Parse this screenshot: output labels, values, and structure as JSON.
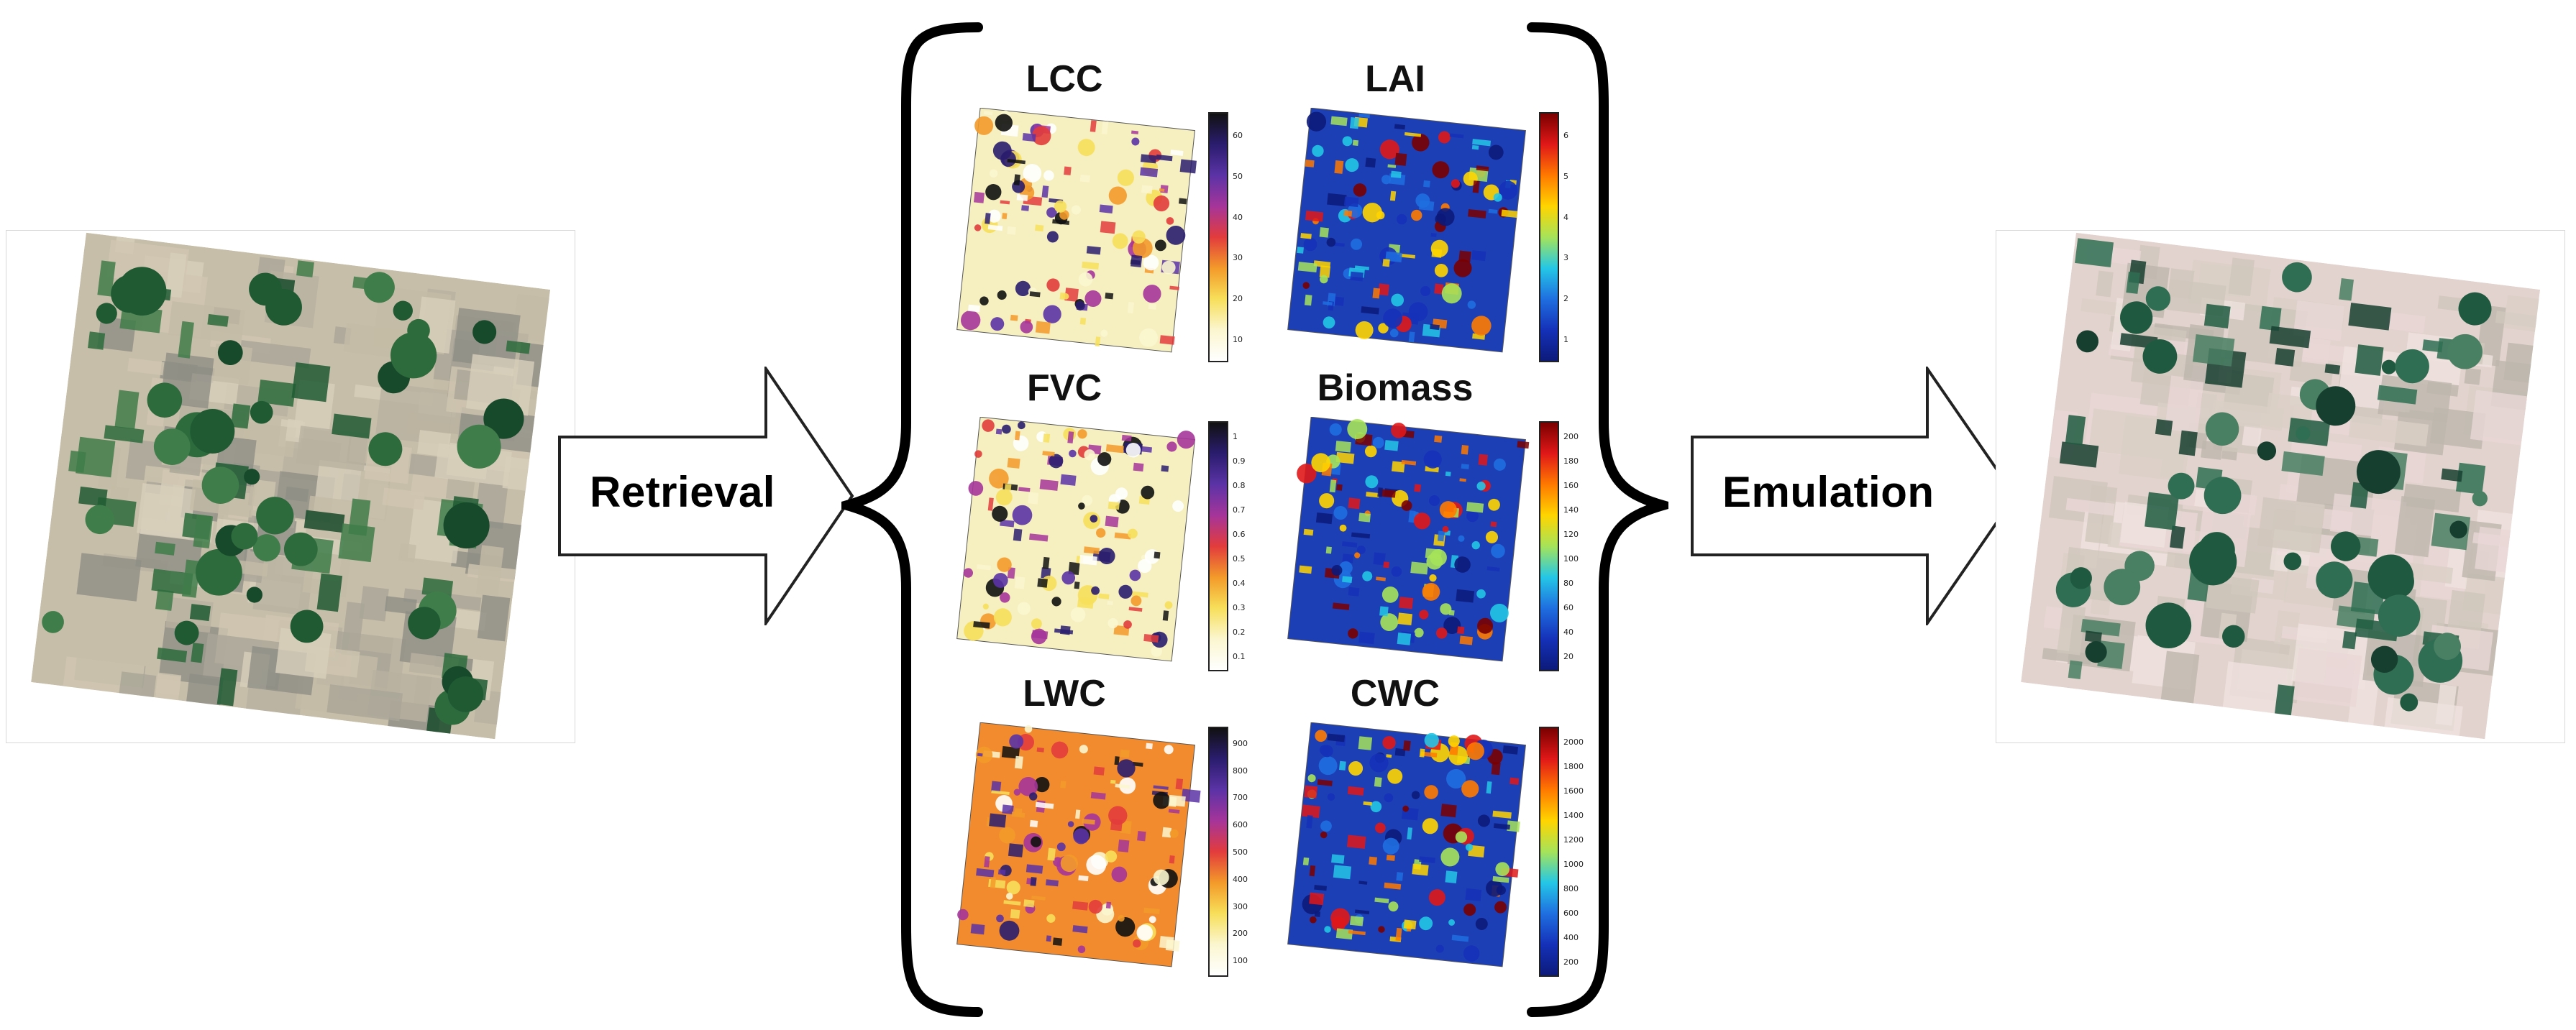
{
  "arrows": {
    "retrieval_label": "Retrieval",
    "emulation_label": "Emulation"
  },
  "images": {
    "input_scene": "satellite-rgb-input",
    "output_scene": "satellite-rgb-emulated"
  },
  "panels": [
    {
      "title": "LCC",
      "colormap": "sunset",
      "ticks": [
        "60",
        "50",
        "40",
        "30",
        "20",
        "10"
      ]
    },
    {
      "title": "LAI",
      "colormap": "jet",
      "ticks": [
        "6",
        "5",
        "4",
        "3",
        "2",
        "1"
      ]
    },
    {
      "title": "FVC",
      "colormap": "sunset",
      "ticks": [
        "1",
        "0.9",
        "0.8",
        "0.7",
        "0.6",
        "0.5",
        "0.4",
        "0.3",
        "0.2",
        "0.1"
      ]
    },
    {
      "title": "Biomass",
      "colormap": "jet",
      "ticks": [
        "200",
        "180",
        "160",
        "140",
        "120",
        "100",
        "80",
        "60",
        "40",
        "20"
      ]
    },
    {
      "title": "LWC",
      "colormap": "sunset",
      "ticks": [
        "900",
        "800",
        "700",
        "600",
        "500",
        "400",
        "300",
        "200",
        "100"
      ]
    },
    {
      "title": "CWC",
      "colormap": "jet",
      "ticks": [
        "2000",
        "1800",
        "1600",
        "1400",
        "1200",
        "1000",
        "800",
        "600",
        "400",
        "200"
      ]
    }
  ],
  "colors": {
    "sunset": [
      "#111111",
      "#2a1d6e",
      "#5b33a6",
      "#a5359a",
      "#e23c3c",
      "#f39a2a",
      "#f7df5a",
      "#fbf6cf",
      "#ffffff"
    ],
    "jet": [
      "#7a0000",
      "#e01818",
      "#ff7a00",
      "#ffd500",
      "#a6e35a",
      "#24c7e6",
      "#1f6fe0",
      "#1531b8",
      "#0c1a7a"
    ]
  }
}
